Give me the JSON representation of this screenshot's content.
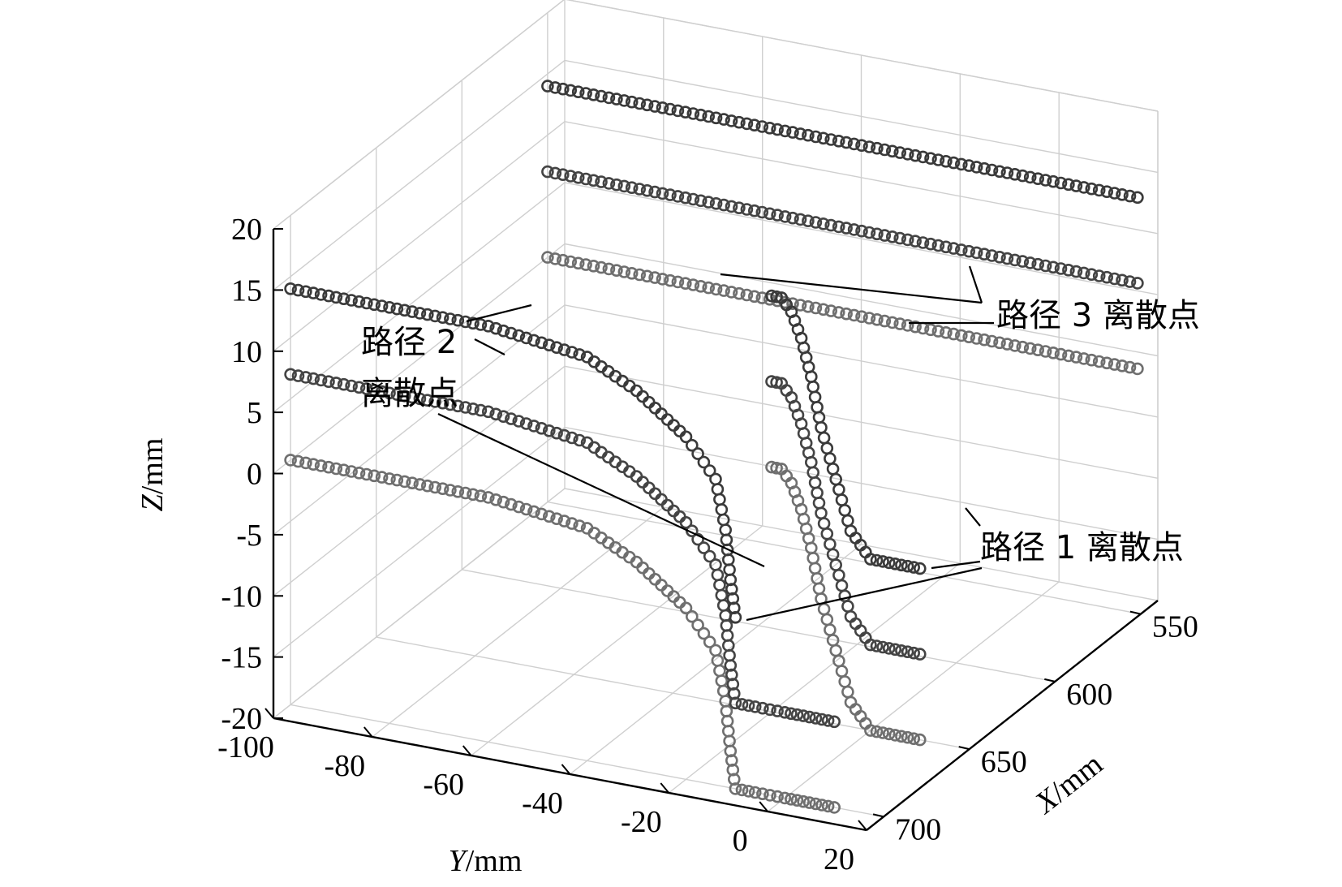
{
  "chart_data": {
    "type": "scatter",
    "title": "",
    "projection": "3d",
    "xlabel": {
      "var": "X",
      "unit": "/mm"
    },
    "ylabel": {
      "var": "Y",
      "unit": "/mm"
    },
    "zlabel": {
      "var": "Z",
      "unit": "/mm"
    },
    "x_ticks": [
      550,
      600,
      650,
      700
    ],
    "y_ticks": [
      -100,
      -80,
      -60,
      -40,
      -20,
      0,
      20
    ],
    "z_ticks": [
      20,
      15,
      10,
      5,
      0,
      -5,
      -10,
      -15,
      -20
    ],
    "xlim": [
      540,
      710
    ],
    "ylim": [
      -100,
      20
    ],
    "zlim": [
      -20,
      20
    ],
    "grid": true,
    "series": [
      {
        "name": "路径 1 离散点",
        "color": "#6f6f6f",
        "lines": [
          {
            "x": 550,
            "y_range": [
              -100,
              20
            ],
            "z": 0
          },
          {
            "x": 700,
            "y": [
              -100,
              -80,
              -60,
              -40,
              -30,
              -20,
              -14,
              -12,
              -11,
              -10,
              -6,
              0,
              5,
              10
            ],
            "z": [
              0,
              0,
              0,
              -1,
              -3,
              -6,
              -9,
              -13,
              -17,
              -20,
              -20,
              -20,
              -20,
              -20
            ]
          },
          {
            "x": 650,
            "y": [
              10,
              5,
              0,
              -4,
              -7,
              -10,
              -12,
              -14,
              -16,
              -18,
              -20
            ],
            "z": [
              -20,
              -20,
              -20,
              -18,
              -14,
              -10,
              -6,
              -3,
              -1,
              0,
              0
            ]
          }
        ]
      },
      {
        "name": "路径 2 离散点",
        "color": "#444444",
        "lines": [
          {
            "x": 550,
            "y_range": [
              -100,
              20
            ],
            "z": 7
          },
          {
            "x": 700,
            "y": [
              -100,
              -80,
              -60,
              -40,
              -30,
              -20,
              -14,
              -12,
              -11,
              -10,
              -6,
              0,
              5,
              10
            ],
            "z": [
              7,
              7,
              7,
              6,
              4,
              1,
              -2,
              -6,
              -10,
              -13,
              -13,
              -13,
              -13,
              -13
            ]
          },
          {
            "x": 650,
            "y": [
              10,
              5,
              0,
              -4,
              -7,
              -10,
              -12,
              -14,
              -16,
              -18,
              -20
            ],
            "z": [
              -13,
              -13,
              -13,
              -11,
              -7,
              -3,
              1,
              4,
              6,
              7,
              7
            ]
          }
        ]
      },
      {
        "name": "路径 3 离散点",
        "color": "#3a3a3a",
        "lines": [
          {
            "x": 550,
            "y_range": [
              -100,
              20
            ],
            "z": 14
          },
          {
            "x": 700,
            "y": [
              -100,
              -80,
              -60,
              -40,
              -30,
              -20,
              -14,
              -12,
              -11,
              -10
            ],
            "z": [
              14,
              14,
              14,
              13,
              11,
              8,
              5,
              1,
              -3,
              -6
            ]
          },
          {
            "x": 650,
            "y": [
              10,
              5,
              0,
              -4,
              -7,
              -10,
              -12,
              -14,
              -16,
              -18,
              -20
            ],
            "z": [
              -6,
              -6,
              -6,
              -4,
              0,
              4,
              8,
              11,
              13,
              14,
              14
            ]
          }
        ]
      }
    ],
    "annotations": [
      {
        "lines": [
          "路径 3 离散点"
        ]
      },
      {
        "lines": [
          "路径 2",
          "离散点"
        ]
      },
      {
        "lines": [
          "路径 1 离散点"
        ]
      }
    ]
  }
}
